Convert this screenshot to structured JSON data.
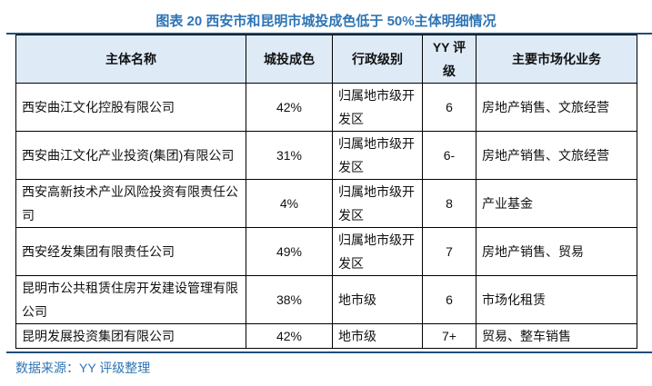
{
  "title": "图表 20 西安市和昆明市城投成色低于 50%主体明细情况",
  "table": {
    "headers": [
      "主体名称",
      "城投成色",
      "行政级别",
      "YY 评级",
      "主要市场化业务"
    ],
    "rows": [
      [
        "西安曲江文化控股有限公司",
        "42%",
        "归属地市级开发区",
        "6",
        "房地产销售、文旅经营"
      ],
      [
        "西安曲江文化产业投资(集团)有限公司",
        "31%",
        "归属地市级开发区",
        "6-",
        "房地产销售、文旅经营"
      ],
      [
        "西安高新技术产业风险投资有限责任公司",
        "4%",
        "归属地市级开发区",
        "8",
        "产业基金"
      ],
      [
        "西安经发集团有限责任公司",
        "49%",
        "归属地市级开发区",
        "7",
        "房地产销售、贸易"
      ],
      [
        "昆明市公共租赁住房开发建设管理有限公司",
        "38%",
        "地市级",
        "6",
        "市场化租赁"
      ],
      [
        "昆明发展投资集团有限公司",
        "42%",
        "地市级",
        "7+",
        "贸易、整车销售"
      ]
    ]
  },
  "source": "数据来源：YY 评级整理"
}
